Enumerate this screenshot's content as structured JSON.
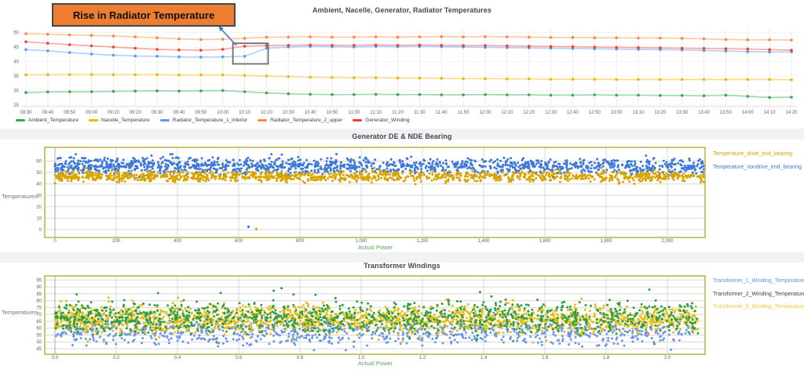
{
  "annotation": {
    "label": "Rise in Radiator Temperature",
    "box_fill": "#ed7d31",
    "arrow_color": "#4472c4"
  },
  "chart_data": [
    {
      "type": "line",
      "title": "Ambient, Nacelle, Generator, Radiator Temperatures",
      "legend_position": "bottom",
      "x_ticks": [
        "08:30",
        "08:40",
        "08:50",
        "09:00",
        "09:10",
        "09:20",
        "09:30",
        "09:40",
        "09:50",
        "10:00",
        "10:10",
        "10:20",
        "10:30",
        "10:40",
        "10:50",
        "11:00",
        "11:10",
        "11:20",
        "11:30",
        "11:40",
        "11:50",
        "12:00",
        "12:10",
        "12:20",
        "12:30",
        "12:40",
        "12:50",
        "13:00",
        "13:10",
        "13:20",
        "13:30",
        "13:40",
        "13:50",
        "14:00",
        "14:10",
        "14:20"
      ],
      "y_ticks": [
        "25",
        "30",
        "35",
        "40",
        "45",
        "50"
      ],
      "y_min": 25,
      "y_max": 50,
      "series": [
        {
          "name": "Ambient_Temperature",
          "color": "#34a853",
          "values": [
            29.3,
            29.5,
            29.6,
            29.6,
            29.7,
            29.8,
            29.9,
            29.8,
            29.9,
            30.0,
            29.6,
            29.2,
            28.9,
            28.7,
            28.6,
            28.6,
            28.7,
            28.6,
            28.6,
            28.5,
            28.5,
            28.6,
            28.5,
            28.5,
            28.4,
            28.4,
            28.5,
            28.4,
            28.4,
            28.3,
            28.3,
            28.2,
            28.4,
            28.0,
            27.6,
            27.7
          ]
        },
        {
          "name": "Nacelle_Temperature",
          "color": "#f5b400",
          "values": [
            35.4,
            35.5,
            35.5,
            35.5,
            35.5,
            35.5,
            35.5,
            35.4,
            35.4,
            35.4,
            35.2,
            35.0,
            34.8,
            34.6,
            34.5,
            34.4,
            34.4,
            34.3,
            34.3,
            34.2,
            34.1,
            34.1,
            34.0,
            34.0,
            33.9,
            33.9,
            33.9,
            33.8,
            33.8,
            33.8,
            33.8,
            33.8,
            33.8,
            33.8,
            33.8,
            33.7
          ]
        },
        {
          "name": "Radiator_Temperature_1_inferior",
          "color": "#5e97f6",
          "values": [
            44.1,
            43.7,
            43.1,
            42.6,
            42.2,
            41.9,
            41.8,
            41.6,
            41.5,
            41.6,
            41.8,
            44.6,
            45.0,
            45.2,
            45.1,
            45.0,
            45.2,
            45.1,
            45.2,
            45.1,
            45.0,
            44.9,
            44.8,
            44.7,
            44.6,
            44.5,
            44.4,
            44.3,
            44.2,
            44.1,
            44.0,
            43.8,
            43.6,
            43.4,
            43.3,
            43.3
          ]
        },
        {
          "name": "Radiator_Temperature_2_upper",
          "color": "#f88a36",
          "values": [
            49.6,
            49.4,
            49.2,
            49.0,
            48.8,
            48.5,
            48.2,
            47.8,
            47.6,
            47.7,
            48.0,
            48.4,
            48.4,
            48.5,
            48.4,
            48.4,
            48.5,
            48.4,
            48.5,
            48.6,
            48.5,
            48.6,
            48.5,
            48.4,
            48.3,
            48.3,
            48.2,
            48.2,
            48.1,
            48.1,
            48.0,
            47.8,
            47.6,
            47.5,
            47.5,
            47.4
          ]
        },
        {
          "name": "Generator_Winding",
          "color": "#ea4335",
          "values": [
            46.8,
            46.3,
            45.8,
            45.4,
            45.0,
            44.6,
            44.2,
            44.0,
            43.9,
            44.2,
            45.3,
            45.5,
            45.6,
            45.7,
            45.6,
            45.6,
            45.7,
            45.6,
            45.7,
            45.6,
            45.5,
            45.5,
            45.4,
            45.3,
            45.2,
            45.1,
            45.0,
            44.9,
            44.8,
            44.7,
            44.6,
            44.5,
            44.4,
            44.3,
            44.1,
            43.9
          ]
        }
      ],
      "highlight": {
        "x_from": "10:10",
        "x_to": "10:20",
        "y_from": 39.2,
        "y_to": 46.3
      }
    },
    {
      "type": "scatter",
      "title": "Generator DE & NDE Bearing",
      "xlabel": "Actual Power",
      "ylabel": "Temperatures",
      "x_ticks": [
        "0",
        "200",
        "400",
        "600",
        "800",
        "1,000",
        "1,200",
        "1,400",
        "1,600",
        "1,800",
        "2,000"
      ],
      "y_ticks": [
        "0",
        "10",
        "20",
        "30",
        "40",
        "50",
        "60"
      ],
      "x_range": [
        0,
        2120
      ],
      "y_range": [
        -7,
        72
      ],
      "legend_position": "right",
      "series": [
        {
          "name": "Temperature_drive_end_bearing",
          "color": "#d9a400",
          "z": 2,
          "points": {
            "count": 1250,
            "x_min": 0,
            "x_max": 2120,
            "x_bias": 1.15,
            "y_center": 46.5,
            "y_spread": 5.2,
            "y_min": 37.5,
            "y_max": 54
          }
        },
        {
          "name": "Temperature_nondrive_end_bearing",
          "color": "#3c78d8",
          "z": 1,
          "points": {
            "count": 1400,
            "x_min": 0,
            "x_max": 2120,
            "x_bias": 1.15,
            "y_center": 55.5,
            "y_spread": 8.0,
            "y_min": 46,
            "y_max": 66
          }
        }
      ],
      "outliers": [
        {
          "series": "Temperature_nondrive_end_bearing",
          "x": 632,
          "y": 2.5
        },
        {
          "series": "Temperature_drive_end_bearing",
          "x": 658,
          "y": 0.6
        }
      ]
    },
    {
      "type": "scatter",
      "title": "Transformer Windings",
      "xlabel": "Actual Power",
      "ylabel": "Temperatures",
      "x_ticks": [
        "0.0",
        "0.2",
        "0.4",
        "0.6",
        "0.8",
        "1.0",
        "1.2",
        "1.4",
        "1.6",
        "1.8",
        "2.0"
      ],
      "y_ticks": [
        "45",
        "50",
        "55",
        "60",
        "65",
        "70",
        "75",
        "80",
        "85",
        "90",
        "95"
      ],
      "x_range": [
        0,
        2.1
      ],
      "y_range": [
        41,
        98
      ],
      "legend_position": "right",
      "series": [
        {
          "name": "Transformer_1_Winding_Temperature",
          "color": "#6a97e8",
          "legend_color": "#5c8ff0",
          "z": 2,
          "points": {
            "count": 700,
            "x_min": 0,
            "x_max": 2.1,
            "x_bias": 1.08,
            "y_center": 56,
            "y_spread": 10,
            "y_min": 44,
            "y_max": 72
          }
        },
        {
          "name": "Transformer_2_Winding_Temperature",
          "color": "#2f9e41",
          "legend_color": "#404040",
          "z": 3,
          "points": {
            "count": 1150,
            "x_min": 0,
            "x_max": 2.1,
            "x_bias": 1.08,
            "y_center": 68,
            "y_spread": 13,
            "y_min": 47,
            "y_max": 91
          }
        },
        {
          "name": "Transformer_3_Winding_Temperature",
          "color": "#e4bd17",
          "legend_color": "#edc93f",
          "z": 1,
          "points": {
            "count": 1900,
            "x_min": 0,
            "x_max": 2.1,
            "x_bias": 1.08,
            "y_center": 66,
            "y_spread": 11.5,
            "y_min": 46,
            "y_max": 85
          }
        }
      ],
      "outliers": []
    }
  ]
}
